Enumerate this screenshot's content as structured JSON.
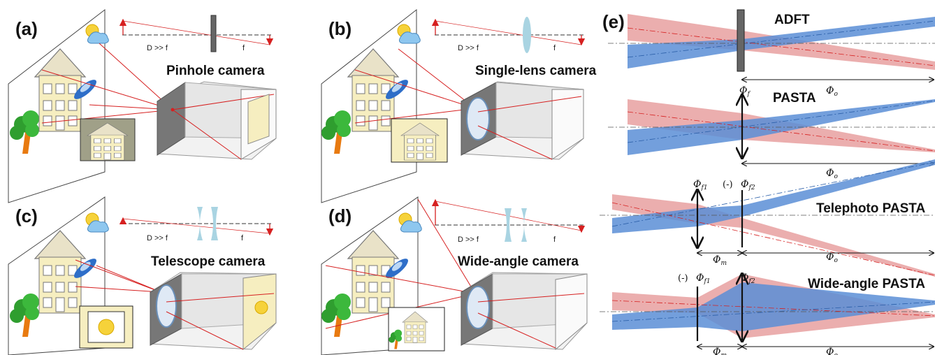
{
  "panels": {
    "a": {
      "label": "(a)",
      "title": "Pinhole camera",
      "dist": "D >> f",
      "focal": "f"
    },
    "b": {
      "label": "(b)",
      "title": "Single-lens camera",
      "dist": "D >> f",
      "focal": "f"
    },
    "c": {
      "label": "(c)",
      "title": "Telescope camera",
      "dist": "D >> f",
      "focal": "f"
    },
    "d": {
      "label": "(d)",
      "title": "Wide-angle camera",
      "dist": "D >> f",
      "focal": "f"
    },
    "e": {
      "label": "(e)",
      "rows": [
        {
          "title": "ADFT"
        },
        {
          "title": "PASTA"
        },
        {
          "title": "Telephoto PASTA"
        },
        {
          "title": "Wide-angle PASTA"
        }
      ]
    }
  },
  "symbols": {
    "phi": "Φ",
    "o": "o",
    "f": "f",
    "f1": "f1",
    "f2": "f2",
    "m": "m",
    "neg": "(-)"
  },
  "colors": {
    "red_beam": "#e8a0a0",
    "blue_beam": "#5b8ed6",
    "ray": "#d62020",
    "lens": "#a9d4e2",
    "screen": "#ffffff",
    "house": "#f6eec0",
    "box_top": "#f2f2f2",
    "box_side": "#c9c9c9"
  }
}
